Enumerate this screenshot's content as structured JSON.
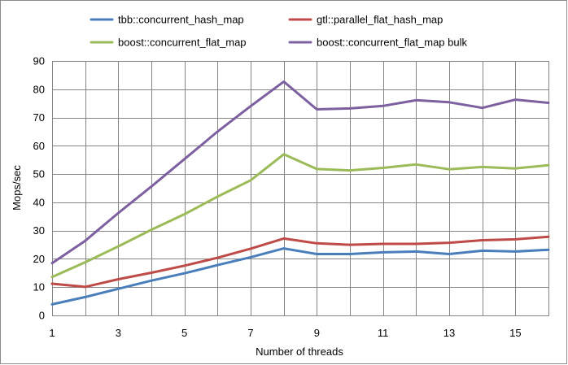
{
  "chart_data": {
    "type": "line",
    "title": "",
    "xlabel": "Number of threads",
    "ylabel": "Mops/sec",
    "x": [
      1,
      2,
      3,
      4,
      5,
      6,
      7,
      8,
      9,
      10,
      11,
      12,
      13,
      14,
      15,
      16
    ],
    "xlim": [
      1,
      16
    ],
    "ylim": [
      0,
      90
    ],
    "xticks": [
      "1",
      "3",
      "5",
      "7",
      "9",
      "11",
      "13",
      "15"
    ],
    "yticks": [
      "0",
      "10",
      "20",
      "30",
      "40",
      "50",
      "60",
      "70",
      "80",
      "90"
    ],
    "grid": "both",
    "legend_position": "top",
    "series": [
      {
        "name": "tbb::concurrent_hash_map",
        "color": "#4a7ebb",
        "values": [
          3.9,
          6.5,
          9.4,
          12.3,
          14.9,
          17.8,
          20.6,
          23.7,
          21.7,
          21.7,
          22.3,
          22.6,
          21.7,
          22.9,
          22.6,
          23.2
        ]
      },
      {
        "name": "gtl::parallel_flat_hash_map",
        "color": "#be4b48",
        "values": [
          11.2,
          10.1,
          12.8,
          15.1,
          17.6,
          20.4,
          23.6,
          27.2,
          25.5,
          25.0,
          25.3,
          25.3,
          25.7,
          26.6,
          26.9,
          27.8
        ]
      },
      {
        "name": "boost::concurrent_flat_map",
        "color": "#9bbb59",
        "values": [
          13.6,
          18.8,
          24.4,
          30.3,
          35.8,
          42.0,
          47.8,
          57.0,
          51.8,
          51.3,
          52.2,
          53.4,
          51.7,
          52.5,
          52.0,
          53.1
        ]
      },
      {
        "name": "boost::concurrent_flat_map bulk",
        "color": "#7d60a0",
        "values": [
          18.5,
          26.4,
          36.2,
          45.6,
          55.3,
          65.0,
          74.0,
          82.7,
          72.9,
          73.2,
          74.1,
          76.1,
          75.4,
          73.4,
          76.3,
          75.2
        ]
      }
    ]
  },
  "colors": {
    "grid": "#868686",
    "frame": "#8c8c8c",
    "background": "#ffffff"
  }
}
